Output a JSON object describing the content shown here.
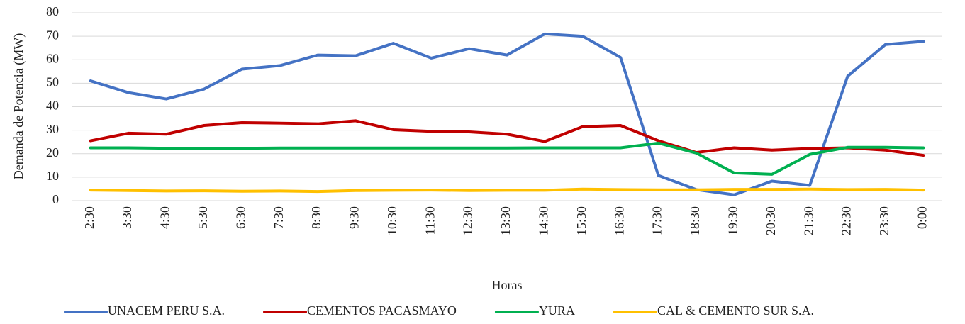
{
  "chart_data": {
    "type": "line",
    "y_label": "Demanda de Potencia (MW)",
    "x_label": "Horas",
    "categories": [
      "2:30",
      "3:30",
      "4:30",
      "5:30",
      "6:30",
      "7:30",
      "8:30",
      "9:30",
      "10:30",
      "11:30",
      "12:30",
      "13:30",
      "14:30",
      "15:30",
      "16:30",
      "17:30",
      "18:30",
      "19:30",
      "20:30",
      "21:30",
      "22:30",
      "23:30",
      "0:00"
    ],
    "series": [
      {
        "name": "UNACEM PERU S.A.",
        "color": "#4472c4",
        "values": [
          51,
          46,
          43.3,
          47.5,
          56,
          57.5,
          62,
          61.7,
          67,
          60.7,
          64.7,
          62,
          71,
          70,
          61,
          10.7,
          4.7,
          2.5,
          8.3,
          6.5,
          53,
          66.5,
          67.8
        ]
      },
      {
        "name": "CEMENTOS PACASMAYO",
        "color": "#c00000",
        "values": [
          25.5,
          28.7,
          28.3,
          32,
          33.2,
          33,
          32.7,
          34,
          30.2,
          29.5,
          29.3,
          28.3,
          25.2,
          31.5,
          32,
          25.5,
          20.5,
          22.5,
          21.5,
          22.2,
          22.5,
          21.5,
          19.3
        ]
      },
      {
        "name": "YURA",
        "color": "#00b050",
        "values": [
          22.5,
          22.5,
          22.3,
          22.2,
          22.3,
          22.4,
          22.4,
          22.4,
          22.4,
          22.4,
          22.4,
          22.4,
          22.5,
          22.5,
          22.5,
          24.5,
          20.3,
          11.8,
          11.2,
          19.7,
          22.7,
          22.7,
          22.5
        ]
      },
      {
        "name": "CAL & CEMENTO SUR S.A.",
        "color": "#ffc000",
        "values": [
          4.5,
          4.3,
          4.1,
          4.2,
          4.0,
          4.1,
          3.9,
          4.3,
          4.4,
          4.5,
          4.3,
          4.4,
          4.4,
          4.9,
          4.7,
          4.6,
          4.6,
          4.8,
          4.8,
          4.9,
          4.7,
          4.8,
          4.5
        ]
      }
    ],
    "ylim": [
      0,
      80
    ],
    "yticks": [
      0,
      10,
      20,
      30,
      40,
      50,
      60,
      70,
      80
    ],
    "grid": true,
    "legend": "bottom"
  }
}
